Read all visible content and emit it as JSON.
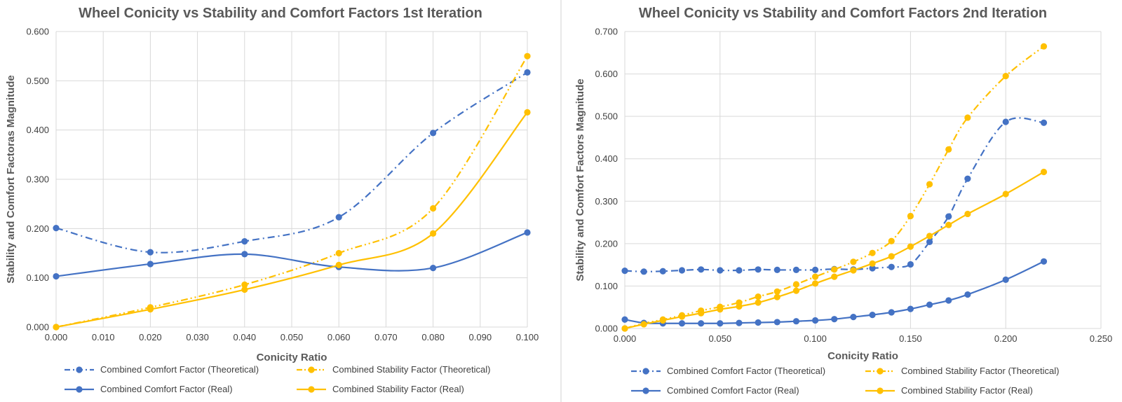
{
  "colors": {
    "comfort": "#4472C4",
    "stability": "#FFC000",
    "grid": "#D9D9D9",
    "divider": "#D0D0D0"
  },
  "chart_data": [
    {
      "type": "line",
      "title": "Wheel Conicity vs Stability and Comfort Factors 1st Iteration",
      "xlabel": "Conicity Ratio",
      "ylabel": "Stability and Comfort Factoras Magnitude",
      "xlim": [
        0,
        0.1
      ],
      "ylim": [
        0,
        0.6
      ],
      "xticks": [
        "0.000",
        "0.010",
        "0.020",
        "0.030",
        "0.040",
        "0.050",
        "0.060",
        "0.070",
        "0.080",
        "0.090",
        "0.100"
      ],
      "yticks": [
        "0.000",
        "0.100",
        "0.200",
        "0.300",
        "0.400",
        "0.500",
        "0.600"
      ],
      "grid": true,
      "legend_position": "bottom",
      "series": [
        {
          "name": "Combined Comfort Factor (Theoretical)",
          "color": "comfort",
          "dash": "dashdot",
          "x": [
            0,
            0.02,
            0.04,
            0.06,
            0.08,
            0.1
          ],
          "y": [
            0.201,
            0.152,
            0.174,
            0.223,
            0.394,
            0.517
          ]
        },
        {
          "name": "Combined Stability Factor (Theoretical)",
          "color": "stability",
          "dash": "dashdotdot",
          "x": [
            0,
            0.02,
            0.04,
            0.06,
            0.08,
            0.1
          ],
          "y": [
            0,
            0.04,
            0.086,
            0.15,
            0.241,
            0.55
          ]
        },
        {
          "name": "Combined Comfort Factor (Real)",
          "color": "comfort",
          "dash": "solid",
          "x": [
            0,
            0.02,
            0.04,
            0.06,
            0.08,
            0.1
          ],
          "y": [
            0.103,
            0.128,
            0.148,
            0.122,
            0.12,
            0.192
          ]
        },
        {
          "name": "Combined Stability Factor (Real)",
          "color": "stability",
          "dash": "solid",
          "x": [
            0,
            0.02,
            0.04,
            0.06,
            0.08,
            0.1
          ],
          "y": [
            0,
            0.036,
            0.076,
            0.126,
            0.19,
            0.436
          ]
        }
      ]
    },
    {
      "type": "line",
      "title": "Wheel Conicity vs Stability and Comfort Factors 2nd Iteration",
      "xlabel": "Conicity Ratio",
      "ylabel": "Stability and Comfort Factors Magnitude",
      "xlim": [
        0,
        0.25
      ],
      "ylim": [
        0,
        0.7
      ],
      "xticks": [
        "0.000",
        "0.050",
        "0.100",
        "0.150",
        "0.200",
        "0.250"
      ],
      "yticks": [
        "0.000",
        "0.100",
        "0.200",
        "0.300",
        "0.400",
        "0.500",
        "0.600",
        "0.700"
      ],
      "grid": true,
      "legend_position": "bottom",
      "series": [
        {
          "name": "Combined Comfort Factor (Theoretical)",
          "color": "comfort",
          "dash": "dashdot",
          "x": [
            0,
            0.01,
            0.02,
            0.03,
            0.04,
            0.05,
            0.06,
            0.07,
            0.08,
            0.09,
            0.1,
            0.11,
            0.12,
            0.13,
            0.14,
            0.15,
            0.16,
            0.17,
            0.18,
            0.2,
            0.22
          ],
          "y": [
            0.136,
            0.134,
            0.135,
            0.137,
            0.139,
            0.137,
            0.137,
            0.139,
            0.138,
            0.138,
            0.138,
            0.14,
            0.139,
            0.142,
            0.145,
            0.151,
            0.204,
            0.264,
            0.353,
            0.487,
            0.485
          ]
        },
        {
          "name": "Combined Stability Factor (Theoretical)",
          "color": "stability",
          "dash": "dashdotdot",
          "x": [
            0,
            0.01,
            0.02,
            0.03,
            0.04,
            0.05,
            0.06,
            0.07,
            0.08,
            0.09,
            0.1,
            0.11,
            0.12,
            0.13,
            0.14,
            0.15,
            0.16,
            0.17,
            0.18,
            0.2,
            0.22
          ],
          "y": [
            0,
            0.012,
            0.021,
            0.031,
            0.042,
            0.051,
            0.061,
            0.075,
            0.087,
            0.104,
            0.122,
            0.139,
            0.157,
            0.178,
            0.206,
            0.265,
            0.34,
            0.422,
            0.497,
            0.595,
            0.665
          ]
        },
        {
          "name": "Combined Comfort Factor (Real)",
          "color": "comfort",
          "dash": "solid",
          "x": [
            0,
            0.01,
            0.02,
            0.03,
            0.04,
            0.05,
            0.06,
            0.07,
            0.08,
            0.09,
            0.1,
            0.11,
            0.12,
            0.13,
            0.14,
            0.15,
            0.16,
            0.17,
            0.18,
            0.2,
            0.22
          ],
          "y": [
            0.021,
            0.013,
            0.012,
            0.012,
            0.012,
            0.012,
            0.013,
            0.014,
            0.015,
            0.017,
            0.019,
            0.022,
            0.027,
            0.032,
            0.038,
            0.046,
            0.056,
            0.066,
            0.08,
            0.115,
            0.158
          ]
        },
        {
          "name": "Combined Stability Factor (Real)",
          "color": "stability",
          "dash": "solid",
          "x": [
            0,
            0.01,
            0.02,
            0.03,
            0.04,
            0.05,
            0.06,
            0.07,
            0.08,
            0.09,
            0.1,
            0.11,
            0.12,
            0.13,
            0.14,
            0.15,
            0.16,
            0.17,
            0.18,
            0.2,
            0.22
          ],
          "y": [
            0,
            0.01,
            0.019,
            0.028,
            0.036,
            0.045,
            0.052,
            0.061,
            0.074,
            0.089,
            0.106,
            0.122,
            0.137,
            0.153,
            0.17,
            0.193,
            0.218,
            0.244,
            0.27,
            0.317,
            0.369
          ]
        }
      ]
    }
  ]
}
